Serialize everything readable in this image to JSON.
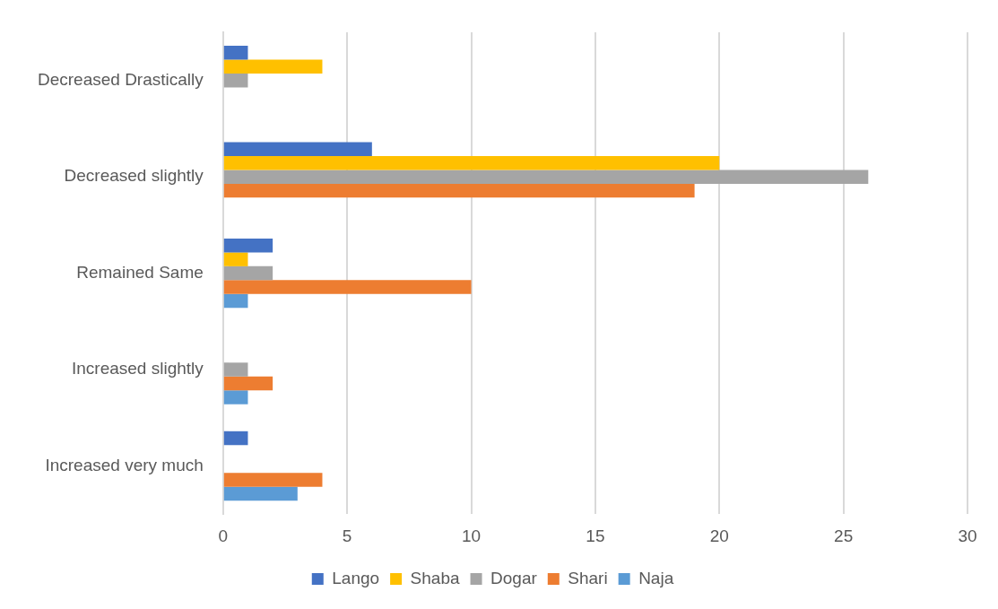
{
  "chart_data": {
    "type": "bar",
    "orientation": "horizontal",
    "categories": [
      "Decreased Drastically",
      "Decreased slightly",
      "Remained Same",
      "Increased slightly",
      "Increased very much"
    ],
    "series": [
      {
        "name": "Lango",
        "color": "#4472c4",
        "values": [
          1,
          6,
          2,
          null,
          1
        ]
      },
      {
        "name": "Shaba",
        "color": "#ffc000",
        "values": [
          4,
          20,
          1,
          null,
          null
        ]
      },
      {
        "name": "Dogar",
        "color": "#a5a5a5",
        "values": [
          1,
          26,
          2,
          1,
          null
        ]
      },
      {
        "name": "Shari",
        "color": "#ed7d31",
        "values": [
          null,
          19,
          10,
          2,
          4
        ]
      },
      {
        "name": "Naja",
        "color": "#5b9bd5",
        "values": [
          null,
          null,
          1,
          1,
          3
        ]
      }
    ],
    "xlim": [
      0,
      30
    ],
    "xticks": [
      0,
      5,
      10,
      15,
      20,
      25,
      30
    ],
    "grid": "x",
    "legend": "bottom"
  }
}
